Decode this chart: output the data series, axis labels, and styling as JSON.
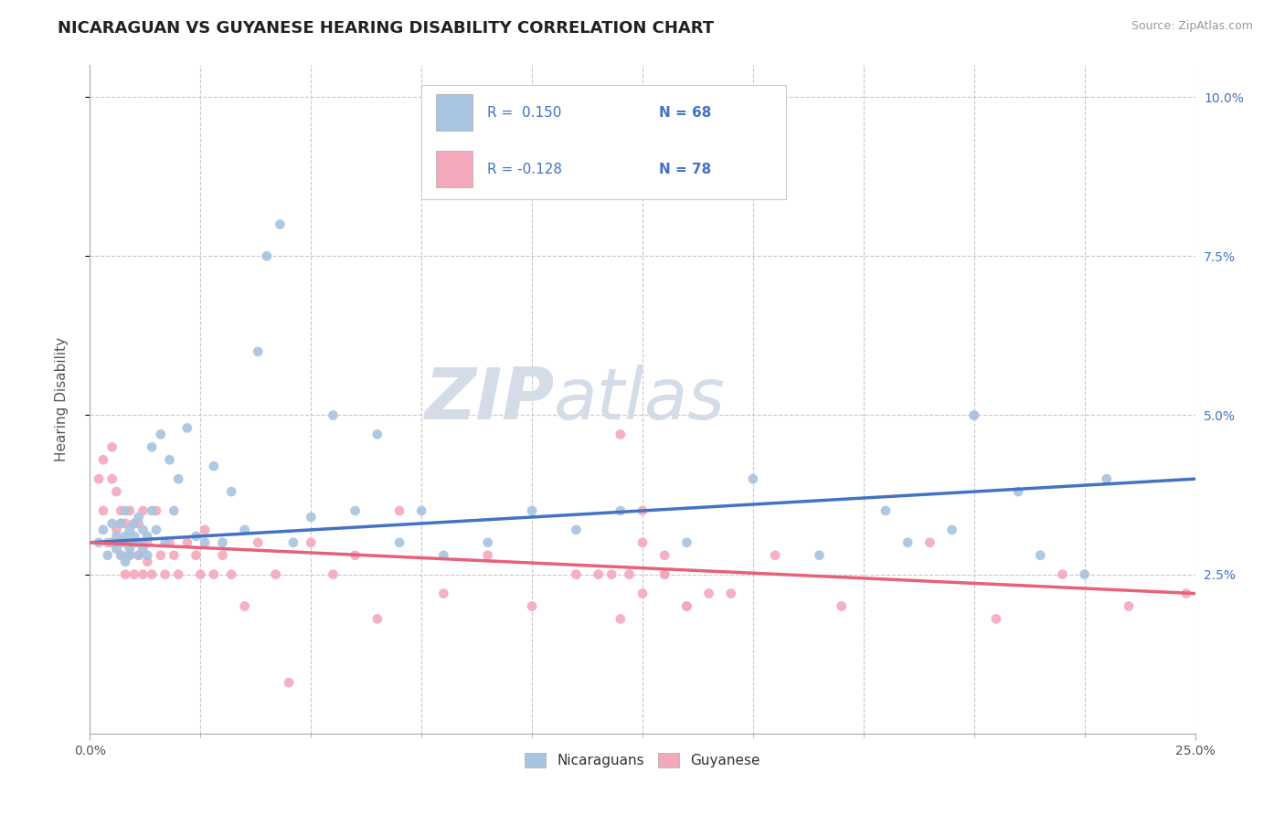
{
  "title": "NICARAGUAN VS GUYANESE HEARING DISABILITY CORRELATION CHART",
  "source": "Source: ZipAtlas.com",
  "ylabel_left": "Hearing Disability",
  "x_min": 0.0,
  "x_max": 0.25,
  "y_min": 0.0,
  "y_max": 0.105,
  "x_ticks_show": [
    0.0,
    0.25
  ],
  "x_tick_labels_show": [
    "0.0%",
    "25.0%"
  ],
  "x_ticks_minor": [
    0.025,
    0.05,
    0.075,
    0.1,
    0.125,
    0.15,
    0.175,
    0.2,
    0.225
  ],
  "y_ticks": [
    0.025,
    0.05,
    0.075,
    0.1
  ],
  "y_tick_labels": [
    "2.5%",
    "5.0%",
    "7.5%",
    "10.0%"
  ],
  "legend_labels": [
    "Nicaraguans",
    "Guyanese"
  ],
  "legend_r_blue": "R =  0.150",
  "legend_r_pink": "R = -0.128",
  "legend_n_blue": "N = 68",
  "legend_n_pink": "N = 78",
  "blue_color": "#a8c4e0",
  "pink_color": "#f4a8bc",
  "blue_line_color": "#4472c4",
  "pink_line_color": "#e8607a",
  "background_color": "#ffffff",
  "grid_color": "#c8c8d0",
  "title_fontsize": 13,
  "axis_label_fontsize": 11,
  "tick_fontsize": 10,
  "watermark_zip": "ZIP",
  "watermark_atlas": "atlas",
  "watermark_color": "#d4dce8",
  "blue_scatter_x": [
    0.002,
    0.003,
    0.004,
    0.005,
    0.005,
    0.006,
    0.006,
    0.007,
    0.007,
    0.007,
    0.008,
    0.008,
    0.008,
    0.009,
    0.009,
    0.009,
    0.01,
    0.01,
    0.01,
    0.011,
    0.011,
    0.011,
    0.012,
    0.012,
    0.013,
    0.013,
    0.014,
    0.014,
    0.015,
    0.016,
    0.017,
    0.018,
    0.019,
    0.02,
    0.022,
    0.024,
    0.026,
    0.028,
    0.03,
    0.032,
    0.035,
    0.038,
    0.04,
    0.043,
    0.046,
    0.05,
    0.055,
    0.06,
    0.065,
    0.07,
    0.075,
    0.08,
    0.09,
    0.1,
    0.11,
    0.12,
    0.135,
    0.15,
    0.165,
    0.18,
    0.2,
    0.215,
    0.23,
    0.2,
    0.185,
    0.195,
    0.21,
    0.225
  ],
  "blue_scatter_y": [
    0.03,
    0.032,
    0.028,
    0.03,
    0.033,
    0.031,
    0.029,
    0.028,
    0.033,
    0.03,
    0.027,
    0.031,
    0.035,
    0.029,
    0.032,
    0.028,
    0.03,
    0.033,
    0.031,
    0.028,
    0.034,
    0.03,
    0.032,
    0.029,
    0.031,
    0.028,
    0.045,
    0.035,
    0.032,
    0.047,
    0.03,
    0.043,
    0.035,
    0.04,
    0.048,
    0.031,
    0.03,
    0.042,
    0.03,
    0.038,
    0.032,
    0.06,
    0.075,
    0.08,
    0.03,
    0.034,
    0.05,
    0.035,
    0.047,
    0.03,
    0.035,
    0.028,
    0.03,
    0.035,
    0.032,
    0.035,
    0.03,
    0.04,
    0.028,
    0.035,
    0.05,
    0.028,
    0.04,
    0.05,
    0.03,
    0.032,
    0.038,
    0.025
  ],
  "pink_scatter_x": [
    0.002,
    0.003,
    0.003,
    0.004,
    0.005,
    0.005,
    0.006,
    0.006,
    0.006,
    0.007,
    0.007,
    0.007,
    0.008,
    0.008,
    0.008,
    0.009,
    0.009,
    0.009,
    0.01,
    0.01,
    0.01,
    0.011,
    0.011,
    0.011,
    0.012,
    0.012,
    0.012,
    0.013,
    0.013,
    0.014,
    0.015,
    0.016,
    0.017,
    0.018,
    0.019,
    0.02,
    0.022,
    0.024,
    0.025,
    0.026,
    0.028,
    0.03,
    0.032,
    0.035,
    0.038,
    0.042,
    0.045,
    0.05,
    0.055,
    0.06,
    0.065,
    0.07,
    0.08,
    0.09,
    0.1,
    0.11,
    0.12,
    0.13,
    0.14,
    0.155,
    0.17,
    0.19,
    0.205,
    0.22,
    0.235,
    0.248,
    0.12,
    0.125,
    0.13,
    0.135,
    0.125,
    0.115,
    0.125,
    0.13,
    0.135,
    0.145,
    0.118,
    0.122
  ],
  "pink_scatter_y": [
    0.04,
    0.035,
    0.043,
    0.03,
    0.04,
    0.045,
    0.032,
    0.03,
    0.038,
    0.033,
    0.028,
    0.035,
    0.03,
    0.025,
    0.033,
    0.03,
    0.035,
    0.028,
    0.033,
    0.025,
    0.03,
    0.03,
    0.028,
    0.033,
    0.025,
    0.03,
    0.035,
    0.027,
    0.03,
    0.025,
    0.035,
    0.028,
    0.025,
    0.03,
    0.028,
    0.025,
    0.03,
    0.028,
    0.025,
    0.032,
    0.025,
    0.028,
    0.025,
    0.02,
    0.03,
    0.025,
    0.008,
    0.03,
    0.025,
    0.028,
    0.018,
    0.035,
    0.022,
    0.028,
    0.02,
    0.025,
    0.018,
    0.025,
    0.022,
    0.028,
    0.02,
    0.03,
    0.018,
    0.025,
    0.02,
    0.022,
    0.047,
    0.03,
    0.028,
    0.02,
    0.035,
    0.025,
    0.022,
    0.025,
    0.02,
    0.022,
    0.025,
    0.025
  ]
}
